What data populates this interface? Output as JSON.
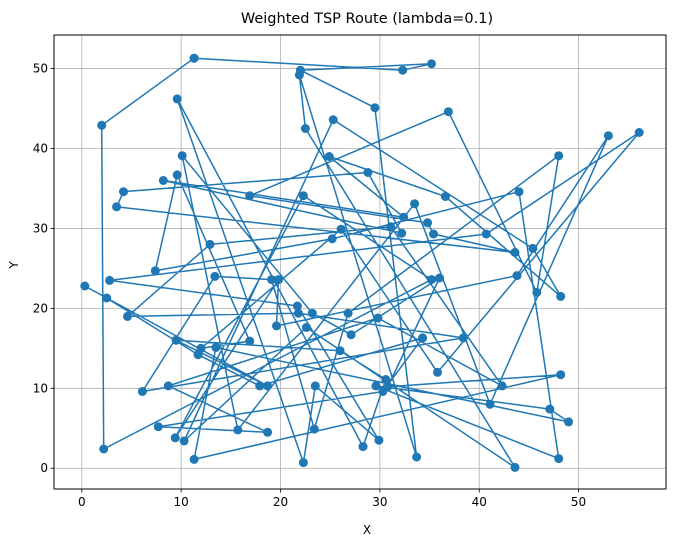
{
  "chart_data": {
    "type": "line",
    "title": "Weighted TSP Route (lambda=0.1)",
    "xlabel": "X",
    "ylabel": "Y",
    "xlim": [
      -2.8,
      58.8
    ],
    "ylim": [
      -2.6,
      54.2
    ],
    "xticks": [
      0,
      10,
      20,
      30,
      40,
      50
    ],
    "yticks": [
      0,
      10,
      20,
      30,
      40,
      50
    ],
    "grid": true,
    "series_color": "#1f77b4",
    "x": [
      11.3,
      32.3,
      35.2,
      22.0,
      29.5,
      33.7,
      21.9,
      22.5,
      43.6,
      22.6,
      10.3,
      25.3,
      45.4,
      48.2,
      36.6,
      24.9,
      32.4,
      8.2,
      32.2,
      28.8,
      4.2,
      3.5,
      43.6,
      35.4,
      34.8,
      16.9,
      36.9,
      45.8,
      48.0,
      26.8,
      23.4,
      19.1,
      13.4,
      6.1,
      38.4,
      21.8,
      4.6,
      12.9,
      31.1,
      42.3,
      29.8,
      8.7,
      18.7,
      7.7,
      30.3,
      34.3,
      17.9,
      11.7,
      2.5,
      0.3,
      18.7,
      9.5,
      26.0,
      30.6,
      28.3,
      9.6,
      22.3,
      23.5,
      29.9,
      21.7,
      2.8,
      40.7,
      56.1,
      35.8,
      26.1,
      12.0,
      16.9,
      9.6,
      7.4,
      25.2,
      44.0,
      48.0,
      29.6,
      47.1,
      49.0,
      13.5,
      11.3,
      48.2,
      30.8,
      36.0,
      27.1,
      23.2,
      10.1,
      15.7,
      33.5,
      41.1,
      53.0,
      43.8,
      19.6,
      19.8,
      9.4,
      22.3,
      35.2,
      2.2,
      2.0,
      11.3
    ],
    "y": [
      51.3,
      49.8,
      50.6,
      49.8,
      45.1,
      1.4,
      49.2,
      42.5,
      0.1,
      17.6,
      3.4,
      43.6,
      27.5,
      21.5,
      34.0,
      39.0,
      31.4,
      36.0,
      29.4,
      37.0,
      34.6,
      32.7,
      27.0,
      29.3,
      30.7,
      34.1,
      44.6,
      22.0,
      39.1,
      19.4,
      4.9,
      23.6,
      24.0,
      9.6,
      16.3,
      19.4,
      19.0,
      28.0,
      30.2,
      10.3,
      18.8,
      10.3,
      4.5,
      5.2,
      9.6,
      16.3,
      10.3,
      14.2,
      21.3,
      22.8,
      10.3,
      16.0,
      14.7,
      11.1,
      2.7,
      46.2,
      0.7,
      10.3,
      3.5,
      20.3,
      23.5,
      29.3,
      42.0,
      12.0,
      29.9,
      15.0,
      15.9,
      36.7,
      24.7,
      28.7,
      34.6,
      1.2,
      10.3,
      7.4,
      5.8,
      15.1,
      1.1,
      11.7,
      10.2,
      23.8,
      16.7,
      19.4,
      39.1,
      4.8,
      33.1,
      8.0,
      41.6,
      24.1,
      17.8,
      23.6,
      3.8,
      34.1,
      23.6,
      2.4,
      42.9,
      51.3
    ]
  }
}
